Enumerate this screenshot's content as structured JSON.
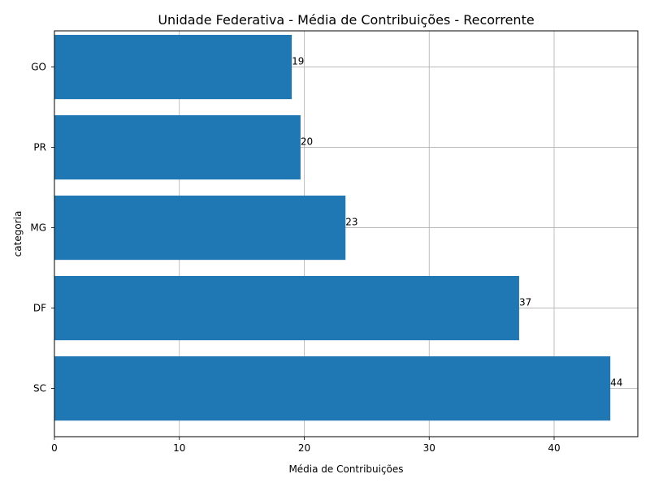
{
  "chart_data": {
    "type": "bar",
    "orientation": "horizontal",
    "title": "Unidade Federativa - Média de Contribuições - Recorrente",
    "xlabel": "Média de Contribuições",
    "ylabel": "categoria",
    "categories": [
      "SC",
      "DF",
      "MG",
      "PR",
      "GO"
    ],
    "values": [
      44.5,
      37.2,
      23.3,
      19.7,
      19.0
    ],
    "data_labels": [
      "44",
      "37",
      "23",
      "20",
      "19"
    ],
    "xlim": [
      0,
      46.7
    ],
    "xticks": [
      0,
      10,
      20,
      30,
      40
    ],
    "grid": true,
    "bar_color": "#1f77b4"
  }
}
